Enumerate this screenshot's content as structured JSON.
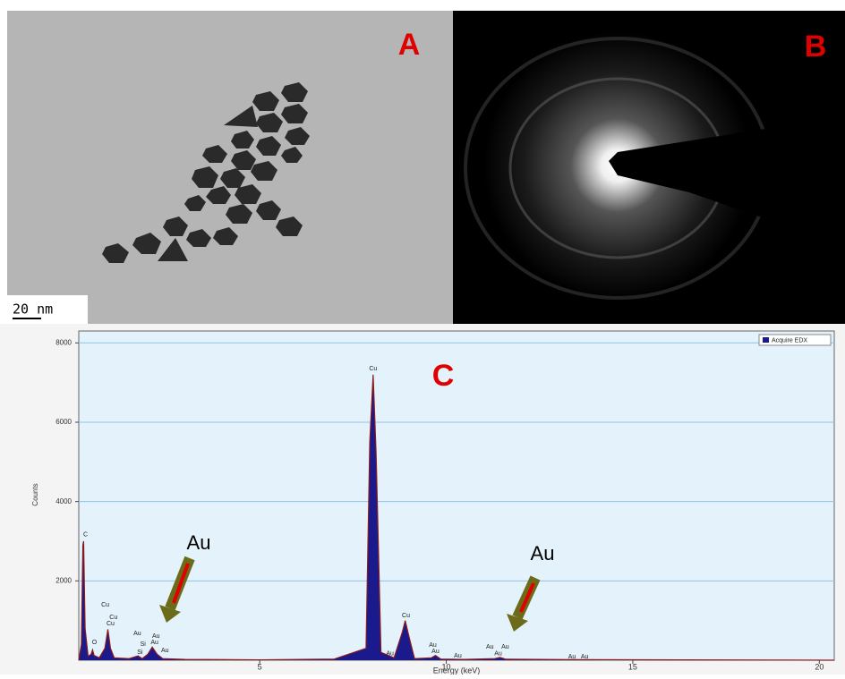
{
  "panels": {
    "a": {
      "label": "A",
      "scale_bar": "20 nm"
    },
    "b": {
      "label": "B"
    },
    "c": {
      "label": "C"
    }
  },
  "chart_data": {
    "type": "area",
    "x_label": "Energy (keV)",
    "y_label": "Counts",
    "series": [
      {
        "name": "Acquire EDX",
        "color": "#1a1a8c",
        "line_color": "#8b1a1a",
        "x": [
          0.15,
          0.22,
          0.26,
          0.28,
          0.32,
          0.4,
          0.48,
          0.52,
          0.56,
          0.7,
          0.85,
          0.93,
          1.0,
          1.1,
          1.5,
          1.74,
          1.85,
          2.0,
          2.12,
          2.25,
          2.4,
          3,
          5,
          7,
          7.85,
          7.95,
          8.04,
          8.12,
          8.25,
          8.6,
          8.82,
          8.9,
          9.0,
          9.15,
          9.6,
          9.71,
          9.85,
          10.5,
          11.3,
          11.44,
          11.6,
          13.5,
          20.4
        ],
        "values": [
          0,
          400,
          2900,
          3000,
          800,
          100,
          150,
          260,
          120,
          60,
          300,
          780,
          300,
          60,
          40,
          110,
          40,
          150,
          330,
          150,
          40,
          20,
          10,
          30,
          300,
          5500,
          7200,
          5200,
          200,
          60,
          700,
          1000,
          600,
          40,
          60,
          120,
          30,
          20,
          40,
          70,
          25,
          15,
          0
        ]
      }
    ],
    "xlim": [
      0.15,
      20.4
    ],
    "ylim": [
      0,
      8300
    ],
    "xticks": [
      5,
      10,
      15,
      20
    ],
    "yticks": [
      2000,
      4000,
      6000,
      8000
    ],
    "grid": true,
    "legend": "upper-right",
    "peak_labels": [
      {
        "label": "C",
        "x": 0.33,
        "y": 3170
      },
      {
        "label": "O",
        "x": 0.57,
        "y": 450
      },
      {
        "label": "Cu",
        "x": 0.86,
        "y": 1390
      },
      {
        "label": "Cu",
        "x": 1.08,
        "y": 1080
      },
      {
        "label": "Cu",
        "x": 1.0,
        "y": 920
      },
      {
        "label": "Au",
        "x": 1.72,
        "y": 670
      },
      {
        "label": "Si",
        "x": 1.87,
        "y": 400
      },
      {
        "label": "Si",
        "x": 1.79,
        "y": 200
      },
      {
        "label": "Au",
        "x": 2.22,
        "y": 610
      },
      {
        "label": "Au",
        "x": 2.18,
        "y": 450
      },
      {
        "label": "Au",
        "x": 2.46,
        "y": 250
      },
      {
        "label": "Cu",
        "x": 8.04,
        "y": 7350
      },
      {
        "label": "Au",
        "x": 8.49,
        "y": 160
      },
      {
        "label": "Cu",
        "x": 8.92,
        "y": 1120
      },
      {
        "label": "Au",
        "x": 9.64,
        "y": 380
      },
      {
        "label": "Au",
        "x": 9.71,
        "y": 220
      },
      {
        "label": "Au",
        "x": 10.31,
        "y": 110
      },
      {
        "label": "Au",
        "x": 11.17,
        "y": 340
      },
      {
        "label": "Au",
        "x": 11.58,
        "y": 340
      },
      {
        "label": "Au",
        "x": 11.39,
        "y": 160
      },
      {
        "label": "Au",
        "x": 13.37,
        "y": 90
      },
      {
        "label": "Au",
        "x": 13.71,
        "y": 90
      }
    ],
    "annotations": [
      "Au",
      "Au"
    ]
  }
}
